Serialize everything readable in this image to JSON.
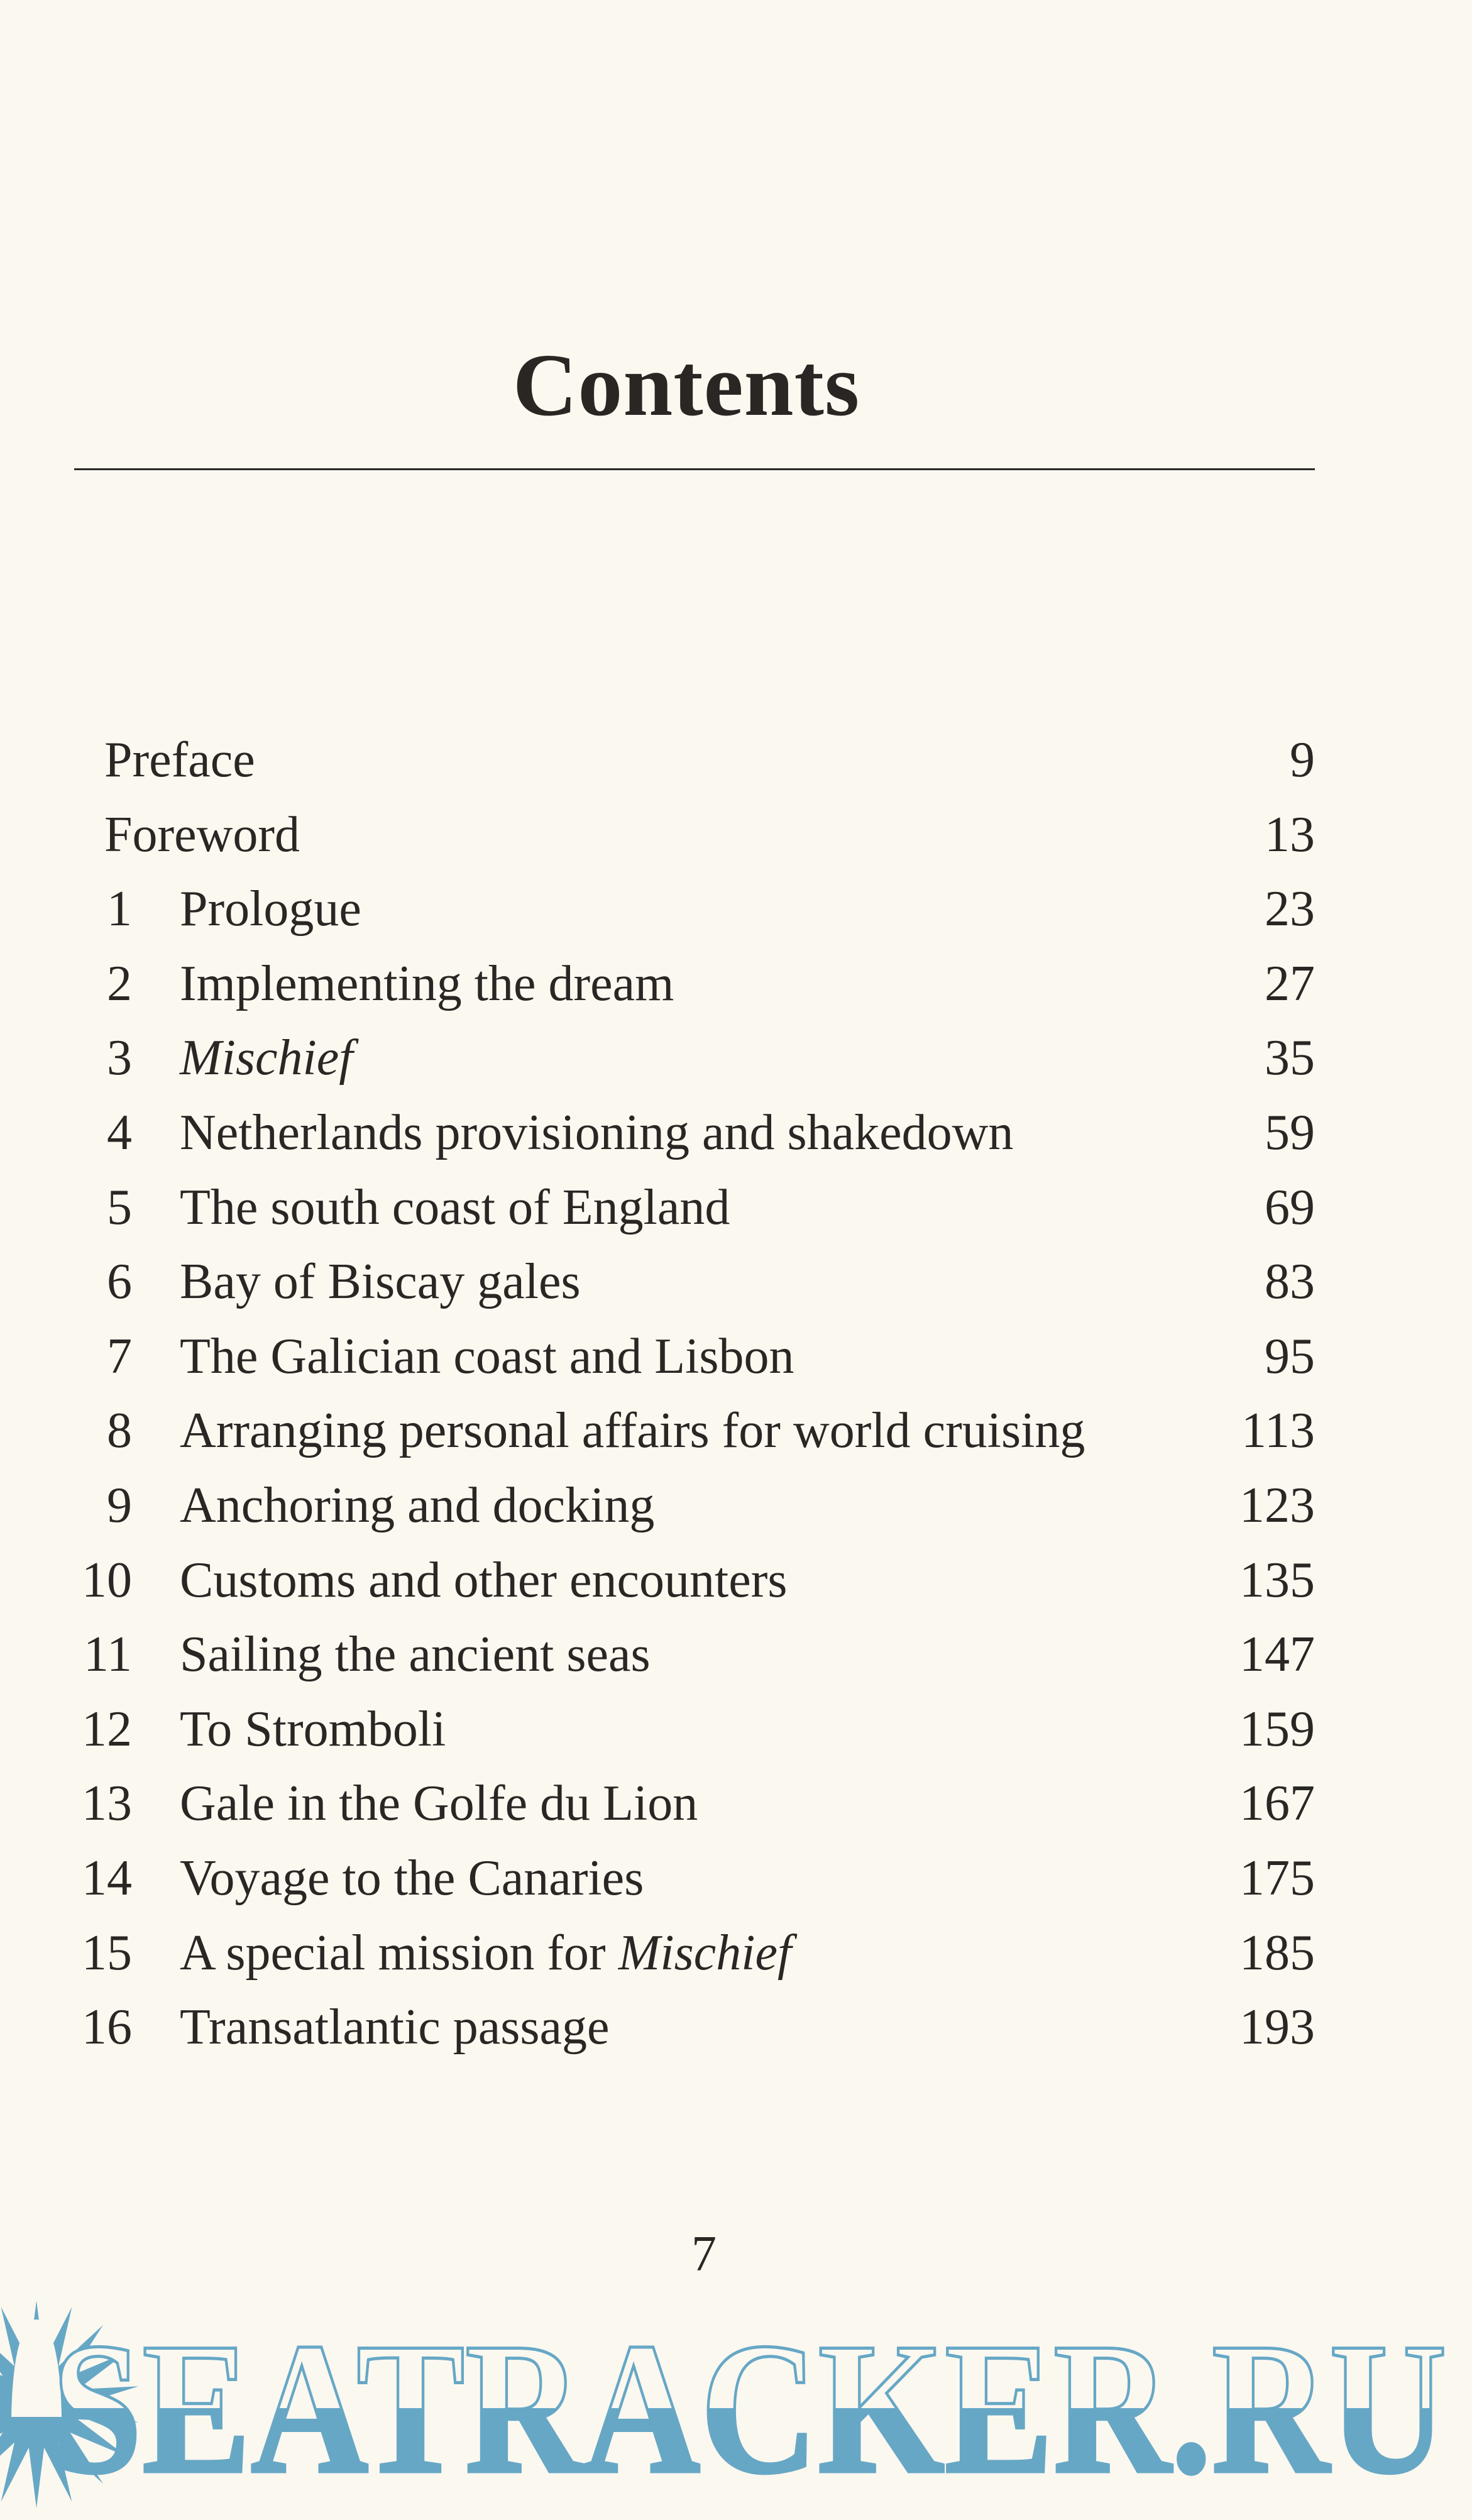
{
  "title": "Contents",
  "entries": [
    {
      "num": "",
      "title": "Preface",
      "page": "9"
    },
    {
      "num": "",
      "title": "Foreword",
      "page": "13"
    },
    {
      "num": "1",
      "title": "Prologue",
      "page": "23"
    },
    {
      "num": "2",
      "title": "Implementing the dream",
      "page": "27"
    },
    {
      "num": "3",
      "title": "",
      "title_italic": "Mischief",
      "page": "35"
    },
    {
      "num": "4",
      "title": "Netherlands provisioning and shakedown",
      "page": "59"
    },
    {
      "num": "5",
      "title": "The south coast of England",
      "page": "69"
    },
    {
      "num": "6",
      "title": "Bay of Biscay gales",
      "page": "83"
    },
    {
      "num": "7",
      "title": "The Galician coast and Lisbon",
      "page": "95"
    },
    {
      "num": "8",
      "title": "Arranging personal affairs for world cruising",
      "page": "113"
    },
    {
      "num": "9",
      "title": "Anchoring and docking",
      "page": "123"
    },
    {
      "num": "10",
      "title": "Customs and other encounters",
      "page": "135"
    },
    {
      "num": "11",
      "title": "Sailing the ancient seas",
      "page": "147"
    },
    {
      "num": "12",
      "title": "To Stromboli",
      "page": "159"
    },
    {
      "num": "13",
      "title": "Gale in the Golfe du Lion",
      "page": "167"
    },
    {
      "num": "14",
      "title": "Voyage to the Canaries",
      "page": "175"
    },
    {
      "num": "15",
      "title": "A special mission for ",
      "title_italic": "Mischief",
      "page": "185"
    },
    {
      "num": "16",
      "title": "Transatlantic passage",
      "page": "193"
    }
  ],
  "folio": "7",
  "watermark": {
    "text": "SEATRACKER.RU",
    "icon": "sun-icon",
    "color": "#66a7c5"
  }
}
